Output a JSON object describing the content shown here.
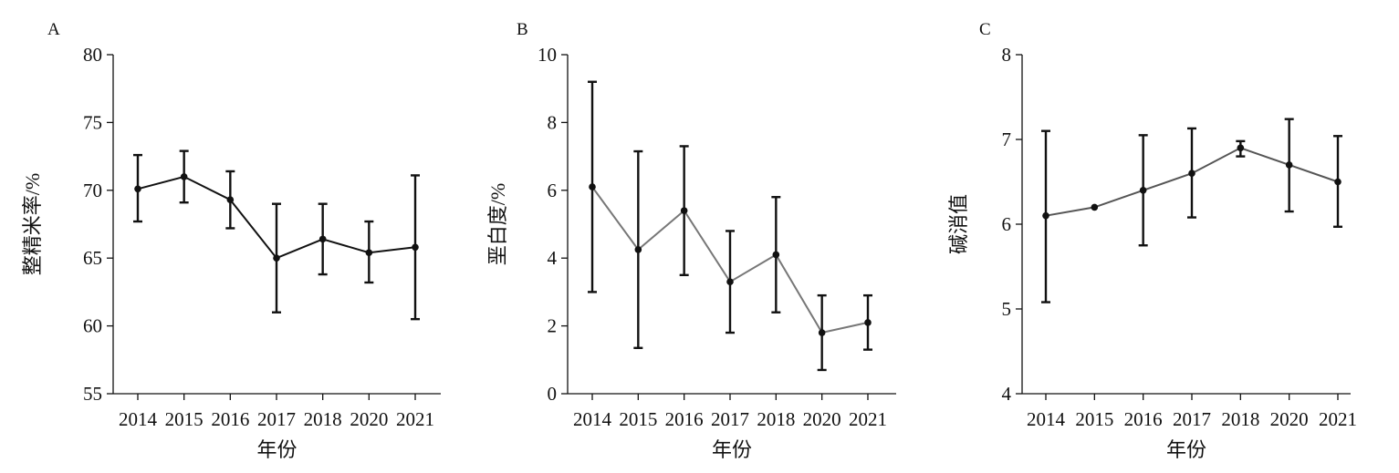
{
  "chart_data": [
    {
      "panel": "A",
      "type": "line",
      "xlabel": "年份",
      "ylabel": "整精米率/%",
      "categories": [
        "2014",
        "2015",
        "2016",
        "2017",
        "2018",
        "2020",
        "2021"
      ],
      "values": [
        70.1,
        71.0,
        69.3,
        65.0,
        66.4,
        65.4,
        65.8
      ],
      "err_low": [
        67.7,
        69.1,
        67.2,
        61.0,
        63.8,
        63.2,
        60.5
      ],
      "err_high": [
        72.6,
        72.9,
        71.4,
        69.0,
        69.0,
        67.7,
        71.1
      ],
      "ylim": [
        55,
        80
      ],
      "yticks": [
        55,
        60,
        65,
        70,
        75,
        80
      ],
      "line_color": "#111111"
    },
    {
      "panel": "B",
      "type": "line",
      "xlabel": "年份",
      "ylabel": "垩白度/%",
      "categories": [
        "2014",
        "2015",
        "2016",
        "2017",
        "2018",
        "2020",
        "2021"
      ],
      "values": [
        6.1,
        4.25,
        5.4,
        3.3,
        4.1,
        1.8,
        2.1
      ],
      "err_low": [
        3.0,
        1.35,
        3.5,
        1.8,
        2.4,
        0.7,
        1.3
      ],
      "err_high": [
        9.2,
        7.15,
        7.3,
        4.8,
        5.8,
        2.9,
        2.9
      ],
      "ylim": [
        0,
        10
      ],
      "yticks": [
        0,
        2,
        4,
        6,
        8,
        10
      ],
      "line_color": "#777777"
    },
    {
      "panel": "C",
      "type": "line",
      "xlabel": "年份",
      "ylabel": "碱消值",
      "categories": [
        "2014",
        "2015",
        "2016",
        "2017",
        "2018",
        "2020",
        "2021"
      ],
      "values": [
        6.1,
        6.2,
        6.4,
        6.6,
        6.9,
        6.7,
        6.5
      ],
      "err_low": [
        5.08,
        6.2,
        5.75,
        6.08,
        6.8,
        6.15,
        5.97
      ],
      "err_high": [
        7.1,
        6.2,
        7.05,
        7.13,
        6.98,
        7.24,
        7.04
      ],
      "ylim": [
        4,
        8
      ],
      "yticks": [
        4,
        5,
        6,
        7,
        8
      ],
      "line_color": "#555555"
    }
  ]
}
